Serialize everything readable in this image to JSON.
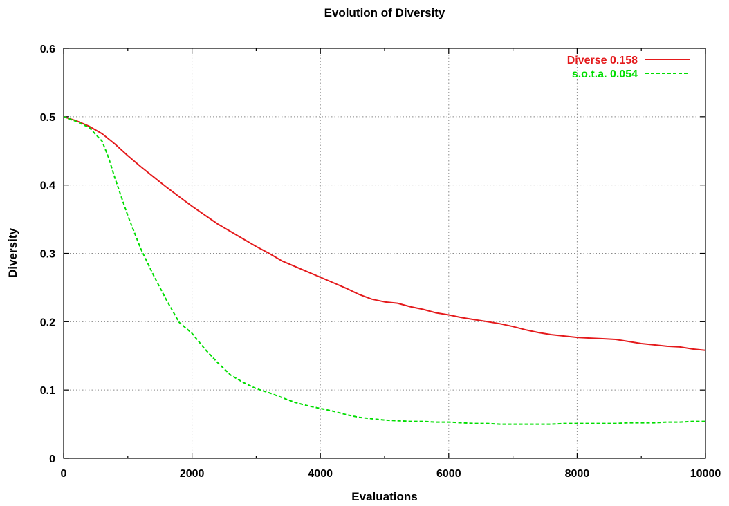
{
  "chart_data": {
    "type": "line",
    "title": "Evolution of Diversity",
    "xlabel": "Evaluations",
    "ylabel": "Diversity",
    "xlim": [
      0,
      10000
    ],
    "ylim": [
      0,
      0.6
    ],
    "xticks": [
      0,
      2000,
      4000,
      6000,
      8000,
      10000
    ],
    "xtick_labels": [
      "0",
      "2000",
      "4000",
      "6000",
      "8000",
      "10000"
    ],
    "yticks": [
      0,
      0.1,
      0.2,
      0.3,
      0.4,
      0.5,
      0.6
    ],
    "ytick_labels": [
      "0",
      "0.1",
      "0.2",
      "0.3",
      "0.4",
      "0.5",
      "0.6"
    ],
    "grid": true,
    "legend_position": "top-right",
    "series": [
      {
        "name": "Diverse 0.158",
        "color": "#e41a1c",
        "style": "solid",
        "x": [
          0,
          200,
          400,
          600,
          800,
          1000,
          1200,
          1400,
          1600,
          1800,
          2000,
          2200,
          2400,
          2600,
          2800,
          3000,
          3200,
          3400,
          3600,
          3800,
          4000,
          4200,
          4400,
          4600,
          4800,
          5000,
          5200,
          5400,
          5600,
          5800,
          6000,
          6200,
          6400,
          6600,
          6800,
          7000,
          7200,
          7400,
          7600,
          7800,
          8000,
          8200,
          8400,
          8600,
          8800,
          9000,
          9200,
          9400,
          9600,
          9800,
          10000
        ],
        "y": [
          0.5,
          0.494,
          0.486,
          0.475,
          0.46,
          0.443,
          0.427,
          0.412,
          0.397,
          0.383,
          0.369,
          0.356,
          0.343,
          0.332,
          0.321,
          0.31,
          0.3,
          0.289,
          0.281,
          0.273,
          0.265,
          0.257,
          0.249,
          0.24,
          0.233,
          0.229,
          0.227,
          0.222,
          0.218,
          0.213,
          0.21,
          0.206,
          0.203,
          0.2,
          0.197,
          0.193,
          0.188,
          0.184,
          0.181,
          0.179,
          0.177,
          0.176,
          0.175,
          0.174,
          0.171,
          0.168,
          0.166,
          0.164,
          0.163,
          0.16,
          0.158
        ]
      },
      {
        "name": "s.o.t.a. 0.054",
        "color": "#00dd00",
        "style": "dashed",
        "x": [
          0,
          200,
          400,
          600,
          700,
          800,
          1000,
          1200,
          1400,
          1600,
          1800,
          2000,
          2200,
          2400,
          2600,
          2800,
          3000,
          3200,
          3400,
          3600,
          3800,
          4000,
          4200,
          4400,
          4600,
          4800,
          5000,
          5200,
          5400,
          5600,
          5800,
          6000,
          6200,
          6400,
          6600,
          6800,
          7000,
          7200,
          7400,
          7600,
          7800,
          8000,
          8200,
          8400,
          8600,
          8800,
          9000,
          9200,
          9400,
          9600,
          9800,
          10000
        ],
        "y": [
          0.5,
          0.493,
          0.484,
          0.464,
          0.44,
          0.41,
          0.355,
          0.307,
          0.268,
          0.232,
          0.199,
          0.183,
          0.16,
          0.14,
          0.122,
          0.111,
          0.102,
          0.096,
          0.089,
          0.082,
          0.077,
          0.073,
          0.069,
          0.064,
          0.06,
          0.058,
          0.056,
          0.055,
          0.054,
          0.054,
          0.053,
          0.053,
          0.052,
          0.051,
          0.051,
          0.05,
          0.05,
          0.05,
          0.05,
          0.05,
          0.051,
          0.051,
          0.051,
          0.051,
          0.051,
          0.052,
          0.052,
          0.052,
          0.053,
          0.053,
          0.054,
          0.054
        ]
      }
    ]
  }
}
